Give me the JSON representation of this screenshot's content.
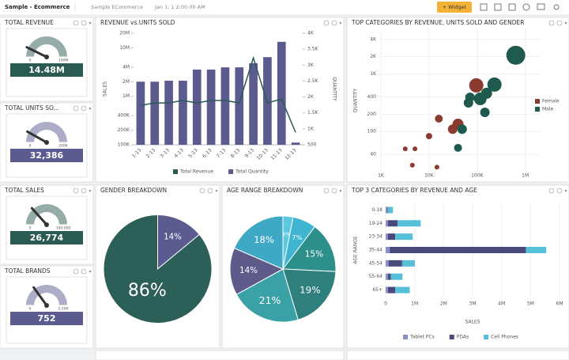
{
  "header": {
    "title": "Sample - Ecommerce",
    "datasource": "Sample ECommerce",
    "date": "Jan 1, 1 2:00:00 AM",
    "button": "+ Widget"
  },
  "chart_data": [
    {
      "type": "gauge",
      "title": "TOTAL REVENUE",
      "value": 14480000,
      "value_label": "14.48M",
      "lim": [
        0,
        100000000
      ],
      "ticks": [
        0,
        {
          "value": 100000000,
          "label": "100M"
        }
      ],
      "color": "#2b5a52"
    },
    {
      "type": "gauge",
      "title": "TOTAL UNITS SO...",
      "value": 32386,
      "value_label": "32,386",
      "lim": [
        0,
        200000
      ],
      "ticks": [
        0,
        {
          "value": 200000,
          "label": "200K"
        }
      ],
      "color": "#5b5b8f"
    },
    {
      "type": "gauge",
      "title": "TOTAL SALES",
      "value": 26774,
      "value_label": "26,774",
      "lim": [
        0,
        100000
      ],
      "ticks": [
        0,
        {
          "value": 100000,
          "label": "100,000"
        }
      ],
      "color": "#2b5a52"
    },
    {
      "type": "gauge",
      "title": "TOTAL BRANDS",
      "value": 752,
      "lim": [
        0,
        2500
      ],
      "ticks": [
        0,
        {
          "value": 2500,
          "label": "2,500"
        }
      ],
      "color": "#5b5b8f"
    },
    {
      "type": "combo",
      "title": "REVENUE vs.UNITS SOLD",
      "ylabel": "SALES",
      "y2label": "QUANTITY",
      "categories": [
        "1-13",
        "2-13",
        "3-13",
        "4-13",
        "5-13",
        "6-13",
        "7-13",
        "8-13",
        "9-13",
        "10-13",
        "11-13",
        "12-13"
      ],
      "yscale": "log",
      "ylim": [
        100000,
        20000000
      ],
      "yticks": [
        {
          "value": 100000,
          "label": "100K"
        },
        {
          "value": 200000,
          "label": "200K"
        },
        {
          "value": 400000,
          "label": "400K"
        },
        {
          "value": 1000000,
          "label": "1M"
        },
        {
          "value": 2000000,
          "label": "2M"
        },
        {
          "value": 4000000,
          "label": "4M"
        },
        {
          "value": 10000000,
          "label": "10M"
        },
        {
          "value": 20000000,
          "label": "20M"
        }
      ],
      "y2lim": [
        500,
        4000
      ],
      "y2ticks": [
        500,
        {
          "value": 1000,
          "label": "1K"
        },
        {
          "value": 1500,
          "label": "1.5K"
        },
        {
          "value": 2000,
          "label": "2K"
        },
        {
          "value": 2500,
          "label": "2.5K"
        },
        {
          "value": 3000,
          "label": "3K"
        },
        {
          "value": 3500,
          "label": "3.5K"
        },
        {
          "value": 4000,
          "label": "4K"
        }
      ],
      "series": [
        {
          "name": "Total Revenue",
          "color": "#2b5a52",
          "mark": "line",
          "values": [
            650000,
            730000,
            730000,
            820000,
            730000,
            820000,
            820000,
            730000,
            6200000,
            730000,
            880000,
            180000
          ]
        },
        {
          "name": "Total Quantity",
          "color": "#5b5b8f",
          "mark": "bar",
          "axis": "y2",
          "values": [
            2480,
            2480,
            2510,
            2510,
            2860,
            2860,
            2930,
            2930,
            3060,
            3250,
            3730,
            570
          ]
        }
      ]
    },
    {
      "type": "scatter",
      "title": "TOP CATEGORIES BY REVENUE, UNITS SOLD AND GENDER",
      "ylabel": "QUANTITY",
      "legend": "right",
      "xscale": "log",
      "yscale": "log",
      "xlim": [
        1000,
        2000000
      ],
      "ylim": [
        20,
        6000
      ],
      "xticks": [
        {
          "value": 1000,
          "label": "1K"
        },
        {
          "value": 10000,
          "label": "10K"
        },
        {
          "value": 100000,
          "label": "100K"
        },
        {
          "value": 1000000,
          "label": "1M"
        }
      ],
      "yticks": [
        40,
        100,
        200,
        400,
        {
          "value": 1000,
          "label": "1K"
        },
        {
          "value": 2000,
          "label": "2K"
        },
        {
          "value": 4000,
          "label": "4K"
        }
      ],
      "series": [
        {
          "name": "Female",
          "color": "#8b3a2f",
          "x": [
            96000,
            40000,
            31000,
            16000,
            10000,
            5100,
            3200,
            4500,
            14600
          ],
          "values": [
            634,
            134,
            110,
            167,
            83,
            50,
            50,
            26,
            24
          ],
          "sizes": [
            9,
            7,
            6,
            5,
            4,
            3,
            3,
            3,
            3
          ]
        },
        {
          "name": "Male",
          "color": "#1f5a4e",
          "x": [
            635000,
            229000,
            157000,
            116000,
            71000,
            66000,
            145000,
            48700,
            40000
          ],
          "values": [
            2120,
            655,
            462,
            370,
            394,
            315,
            215,
            110,
            52
          ],
          "sizes": [
            12,
            9,
            7,
            8,
            6,
            6,
            6,
            6,
            5
          ]
        }
      ]
    },
    {
      "type": "pie",
      "title": "GENDER BREAKDOWN",
      "values": [
        14,
        86
      ],
      "value_labels": [
        "14%",
        "86%"
      ],
      "colors": [
        "#5b5b8f",
        "#2b5f57"
      ]
    },
    {
      "type": "pie",
      "title": "AGE RANGE BREAKDOWN",
      "values": [
        3,
        7,
        15,
        19,
        21,
        14,
        18
      ],
      "value_labels": [
        "3%",
        "7%",
        "15%",
        "19%",
        "21%",
        "14%",
        "18%"
      ],
      "colors": [
        "#5bc8e0",
        "#3fb5d2",
        "#2d8f8a",
        "#2f7f7c",
        "#3aa1a6",
        "#5e5a8a",
        "#3fa8c4"
      ]
    },
    {
      "type": "hbar",
      "title": "TOP 3 CATEGORIES BY REVENUE AND AGE",
      "stacked": true,
      "xlabel": "SALES",
      "ylabel": "AGE RANGE",
      "categories": [
        "0-18",
        "19-24",
        "23-34",
        "35-44",
        "45-54",
        "55-64",
        "65+"
      ],
      "xlim": [
        0,
        6000000
      ],
      "xticks": [
        0,
        {
          "value": 1000000,
          "label": "1M"
        },
        {
          "value": 2000000,
          "label": "2M"
        },
        {
          "value": 3000000,
          "label": "3M"
        },
        {
          "value": 4000000,
          "label": "4M"
        },
        {
          "value": 5000000,
          "label": "5M"
        },
        {
          "value": 6000000,
          "label": "6M"
        }
      ],
      "series": [
        {
          "name": "Tablet PCs",
          "color": "#8a8fc8",
          "values": [
            50000,
            80000,
            80000,
            140000,
            100000,
            80000,
            80000
          ]
        },
        {
          "name": "PDAs",
          "color": "#4a4a7a",
          "values": [
            20000,
            330000,
            250000,
            4700000,
            470000,
            100000,
            250000
          ]
        },
        {
          "name": "Cell Phones",
          "color": "#55c0d8",
          "values": [
            180000,
            800000,
            600000,
            700000,
            440000,
            400000,
            500000
          ]
        }
      ]
    }
  ]
}
